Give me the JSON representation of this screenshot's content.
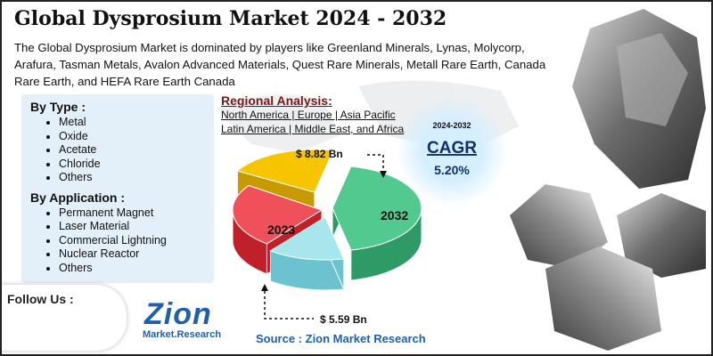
{
  "header": {
    "title": "Global Dysprosium Market 2024 - 2032",
    "description": "The Global Dysprosium Market is dominated by players like Greenland Minerals, Lynas, Molycorp, Arafura, Tasman Metals, Avalon Advanced Materials, Quest Rare Minerals, Metall Rare Earth, Canada Rare Earth, and HEFA Rare Earth Canada"
  },
  "segments": {
    "by_type": {
      "heading": "By Type :",
      "items": [
        "Metal",
        "Oxide",
        "Acetate",
        "Chloride",
        "Others"
      ]
    },
    "by_application": {
      "heading": "By Application :",
      "items": [
        "Permanent Magnet",
        "Laser Material",
        "Commercial Lightning",
        "Nuclear Reactor",
        "Others"
      ]
    }
  },
  "regional": {
    "heading": "Regional Analysis:",
    "lines": [
      "North America | Europe | Asia Pacific",
      "Latin America | Middle East, and Africa"
    ]
  },
  "cagr": {
    "period": "2024-2032",
    "label": "CAGR",
    "value": "5.20%"
  },
  "pie": {
    "value_2032": "$ 8.82 Bn",
    "value_2023": "$ 5.59 Bn",
    "label_2023": "2023",
    "label_2032": "2032"
  },
  "follow": {
    "label": "Follow Us :"
  },
  "logo": {
    "name": "Zion",
    "sub": "Market.Research"
  },
  "source": "Source : Zion Market Research"
}
